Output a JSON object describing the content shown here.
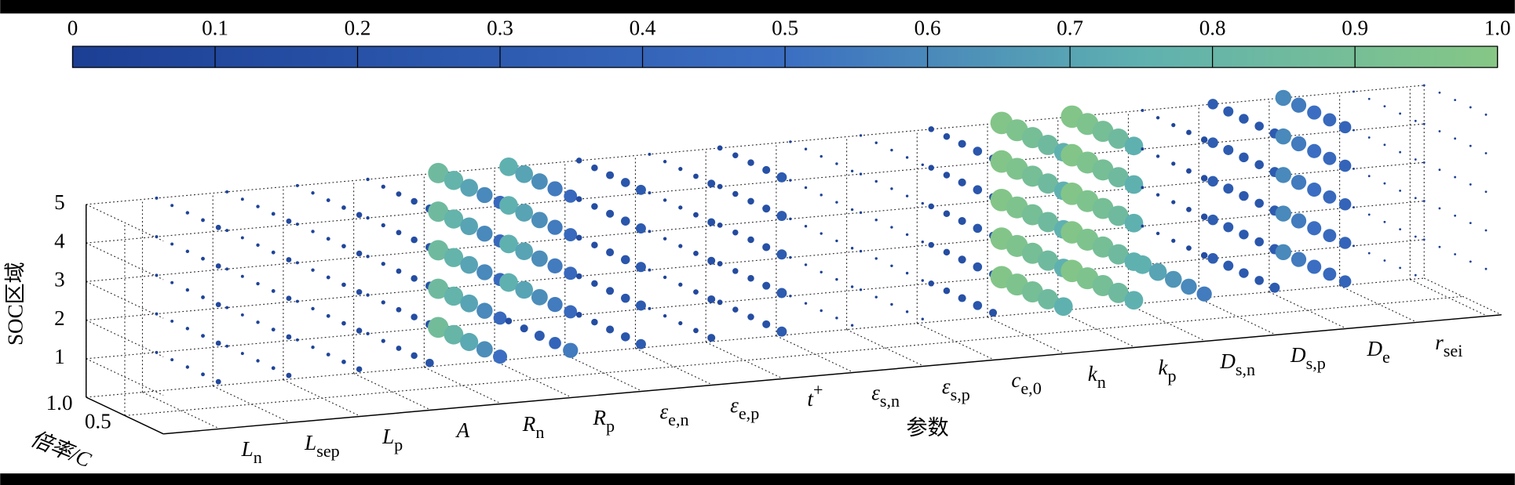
{
  "chart_data": {
    "type": "bubble3d",
    "xlabel": "参数",
    "ylabel": "SOC区域",
    "rlabel": "倍率/C",
    "categories": [
      null,
      {
        "base": "L",
        "sub": "n"
      },
      {
        "base": "L",
        "sub": "sep"
      },
      {
        "base": "L",
        "sub": "p"
      },
      {
        "base": "A"
      },
      {
        "base": "R",
        "sub": "n"
      },
      {
        "base": "R",
        "sub": "p"
      },
      {
        "base": "ε",
        "sub": "e,n"
      },
      {
        "base": "ε",
        "sub": "e,p"
      },
      {
        "base": "t",
        "sup": "+"
      },
      {
        "base": "ε",
        "sub": "s,n"
      },
      {
        "base": "ε",
        "sub": "s,p"
      },
      {
        "base": "c",
        "sub": "e,0"
      },
      {
        "base": "k",
        "sub": "n"
      },
      {
        "base": "k",
        "sub": "p"
      },
      {
        "base": "D",
        "sub": "s,n"
      },
      {
        "base": "D",
        "sub": "s,p"
      },
      {
        "base": "D",
        "sub": "e"
      },
      {
        "base": "r",
        "sub": "sei"
      }
    ],
    "soc": [
      1,
      2,
      3,
      4,
      5
    ],
    "rates": [
      0.2,
      0.4,
      0.6,
      0.8,
      1.0
    ],
    "zlim": [
      0,
      5
    ],
    "zticks": [
      1,
      2,
      3,
      4,
      5
    ],
    "rlim": [
      0,
      1
    ],
    "rticks": [
      0.5,
      {
        "value": 1,
        "label": "1.0"
      }
    ],
    "values": [
      [
        [
          0.1,
          0.05,
          0.04,
          0.03,
          0.03
        ],
        [
          0.1,
          0.05,
          0.04,
          0.03,
          0.03
        ],
        [
          0.1,
          0.05,
          0.04,
          0.03,
          0.03
        ],
        [
          0.1,
          0.05,
          0.04,
          0.03,
          0.03
        ],
        [
          0.1,
          0.05,
          0.04,
          0.03,
          0.03
        ]
      ],
      [
        [
          0.1,
          0.05,
          0.04,
          0.03,
          0.03
        ],
        [
          0.1,
          0.05,
          0.04,
          0.03,
          0.03
        ],
        [
          0.1,
          0.05,
          0.04,
          0.03,
          0.03
        ],
        [
          0.1,
          0.05,
          0.04,
          0.03,
          0.03
        ],
        [
          0.1,
          0.05,
          0.04,
          0.03,
          0.03
        ]
      ],
      [
        [
          0.12,
          0.07,
          0.05,
          0.04,
          0.03
        ],
        [
          0.12,
          0.07,
          0.05,
          0.04,
          0.03
        ],
        [
          0.12,
          0.07,
          0.05,
          0.04,
          0.03
        ],
        [
          0.12,
          0.07,
          0.05,
          0.04,
          0.03
        ],
        [
          0.12,
          0.07,
          0.05,
          0.04,
          0.03
        ]
      ],
      [
        [
          0.22,
          0.15,
          0.1,
          0.06,
          0.04
        ],
        [
          0.22,
          0.15,
          0.1,
          0.06,
          0.04
        ],
        [
          0.22,
          0.15,
          0.1,
          0.06,
          0.04
        ],
        [
          0.22,
          0.15,
          0.1,
          0.06,
          0.04
        ],
        [
          0.22,
          0.15,
          0.1,
          0.06,
          0.04
        ]
      ],
      [
        [
          0.5,
          0.62,
          0.72,
          0.8,
          0.88
        ],
        [
          0.45,
          0.6,
          0.7,
          0.78,
          0.85
        ],
        [
          0.45,
          0.6,
          0.7,
          0.78,
          0.85
        ],
        [
          0.45,
          0.6,
          0.7,
          0.78,
          0.85
        ],
        [
          0.45,
          0.6,
          0.7,
          0.78,
          0.85
        ]
      ],
      [
        [
          0.55,
          0.4,
          0.3,
          0.2,
          0.15
        ],
        [
          0.45,
          0.55,
          0.62,
          0.7,
          0.75
        ],
        [
          0.45,
          0.55,
          0.62,
          0.7,
          0.75
        ],
        [
          0.45,
          0.55,
          0.62,
          0.7,
          0.75
        ],
        [
          0.45,
          0.55,
          0.62,
          0.7,
          0.75
        ]
      ],
      [
        [
          0.3,
          0.25,
          0.2,
          0.15,
          0.12
        ],
        [
          0.3,
          0.25,
          0.2,
          0.15,
          0.12
        ],
        [
          0.3,
          0.25,
          0.2,
          0.15,
          0.12
        ],
        [
          0.3,
          0.25,
          0.2,
          0.15,
          0.12
        ],
        [
          0.3,
          0.25,
          0.2,
          0.15,
          0.12
        ]
      ],
      [
        [
          0.2,
          0.1,
          0.06,
          0.04,
          0.03
        ],
        [
          0.2,
          0.1,
          0.06,
          0.04,
          0.03
        ],
        [
          0.2,
          0.1,
          0.06,
          0.04,
          0.03
        ],
        [
          0.2,
          0.1,
          0.06,
          0.04,
          0.03
        ],
        [
          0.2,
          0.1,
          0.06,
          0.04,
          0.03
        ]
      ],
      [
        [
          0.3,
          0.2,
          0.15,
          0.12,
          0.1
        ],
        [
          0.3,
          0.2,
          0.15,
          0.12,
          0.1
        ],
        [
          0.3,
          0.2,
          0.15,
          0.12,
          0.1
        ],
        [
          0.3,
          0.2,
          0.15,
          0.12,
          0.1
        ],
        [
          0.3,
          0.2,
          0.15,
          0.12,
          0.1
        ]
      ],
      [
        [
          0.02,
          0.02,
          0.02,
          0.02,
          0.02
        ],
        [
          0.02,
          0.02,
          0.02,
          0.02,
          0.02
        ],
        [
          0.02,
          0.02,
          0.02,
          0.02,
          0.02
        ],
        [
          0.02,
          0.02,
          0.02,
          0.02,
          0.02
        ],
        [
          0.02,
          0.02,
          0.02,
          0.02,
          0.02
        ]
      ],
      [
        [
          0.02,
          0.02,
          0.02,
          0.02,
          0.02
        ],
        [
          0.02,
          0.02,
          0.02,
          0.02,
          0.02
        ],
        [
          0.02,
          0.02,
          0.02,
          0.02,
          0.02
        ],
        [
          0.02,
          0.02,
          0.02,
          0.02,
          0.02
        ],
        [
          0.02,
          0.02,
          0.02,
          0.02,
          0.02
        ]
      ],
      [
        [
          0.2,
          0.25,
          0.2,
          0.15,
          0.12
        ],
        [
          0.2,
          0.25,
          0.2,
          0.15,
          0.12
        ],
        [
          0.2,
          0.25,
          0.2,
          0.15,
          0.12
        ],
        [
          0.2,
          0.25,
          0.2,
          0.15,
          0.12
        ],
        [
          0.2,
          0.25,
          0.2,
          0.15,
          0.12
        ]
      ],
      [
        [
          0.75,
          0.85,
          0.9,
          0.95,
          0.98
        ],
        [
          0.75,
          0.85,
          0.9,
          0.95,
          0.98
        ],
        [
          0.75,
          0.85,
          0.9,
          0.95,
          0.98
        ],
        [
          0.75,
          0.85,
          0.9,
          0.95,
          0.98
        ],
        [
          0.75,
          0.85,
          0.9,
          0.95,
          0.98
        ]
      ],
      [
        [
          0.75,
          0.85,
          0.9,
          0.95,
          0.98
        ],
        [
          0.75,
          0.85,
          0.9,
          0.95,
          0.98
        ],
        [
          0.75,
          0.85,
          0.9,
          0.95,
          0.98
        ],
        [
          0.75,
          0.85,
          0.9,
          0.95,
          0.98
        ],
        [
          0.75,
          0.85,
          0.9,
          0.95,
          0.98
        ]
      ],
      [
        [
          0.55,
          0.6,
          0.65,
          0.7,
          0.75
        ],
        [
          0.15,
          0.1,
          0.06,
          0.04,
          0.03
        ],
        [
          0.15,
          0.1,
          0.06,
          0.04,
          0.03
        ],
        [
          0.15,
          0.1,
          0.06,
          0.04,
          0.03
        ],
        [
          0.15,
          0.1,
          0.06,
          0.04,
          0.03
        ]
      ],
      [
        [
          0.3,
          0.25,
          0.28,
          0.3,
          0.32
        ],
        [
          0.3,
          0.25,
          0.28,
          0.3,
          0.32
        ],
        [
          0.3,
          0.25,
          0.28,
          0.3,
          0.32
        ],
        [
          0.3,
          0.25,
          0.28,
          0.3,
          0.32
        ],
        [
          0.3,
          0.25,
          0.28,
          0.3,
          0.32
        ]
      ],
      [
        [
          0.4,
          0.45,
          0.5,
          0.55,
          0.6
        ],
        [
          0.4,
          0.45,
          0.5,
          0.55,
          0.6
        ],
        [
          0.4,
          0.45,
          0.5,
          0.55,
          0.6
        ],
        [
          0.4,
          0.45,
          0.5,
          0.55,
          0.6
        ],
        [
          0.4,
          0.45,
          0.5,
          0.55,
          0.6
        ]
      ],
      [
        [
          0.01,
          0.01,
          0.01,
          0.01,
          0.01
        ],
        [
          0.01,
          0.01,
          0.01,
          0.01,
          0.01
        ],
        [
          0.01,
          0.01,
          0.01,
          0.01,
          0.01
        ],
        [
          0.01,
          0.01,
          0.01,
          0.01,
          0.01
        ],
        [
          0.01,
          0.01,
          0.01,
          0.01,
          0.01
        ]
      ],
      [
        [
          0.01,
          0.01,
          0.01,
          0.01,
          0.01
        ],
        [
          0.01,
          0.01,
          0.01,
          0.01,
          0.01
        ],
        [
          0.01,
          0.01,
          0.01,
          0.01,
          0.01
        ],
        [
          0.01,
          0.01,
          0.01,
          0.01,
          0.01
        ],
        [
          0.01,
          0.01,
          0.01,
          0.01,
          0.01
        ]
      ]
    ],
    "colorbar": {
      "lim": [
        0,
        1
      ],
      "ticks": [
        0,
        0.1,
        0.2,
        0.3,
        0.4,
        0.5,
        0.6,
        0.7,
        0.8,
        0.9,
        {
          "value": 1,
          "label": "1.0"
        }
      ],
      "colors": [
        "#1c3f94",
        "#2a56ab",
        "#3b6ec2",
        "#5fb1b0",
        "#86c785"
      ]
    }
  }
}
